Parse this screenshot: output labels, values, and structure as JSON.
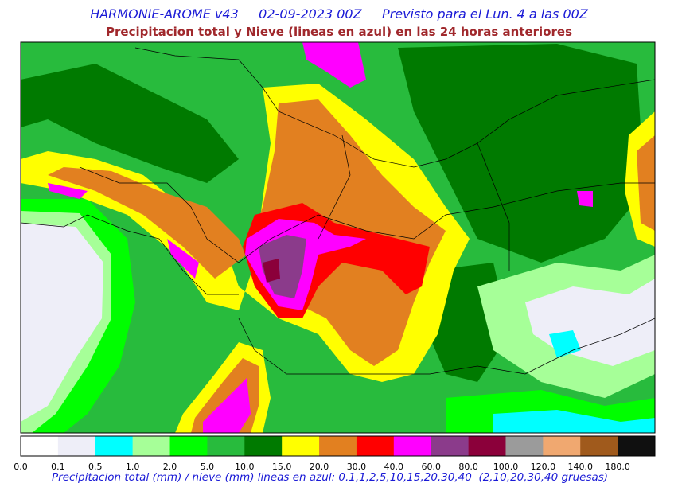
{
  "header": {
    "title": "HARMONIE-AROME v43     02-09-2023 00Z     Previsto para el Lun. 4 a las 00Z",
    "subtitle": "Precipitacion total y Nieve (lineas en azul) en las 24 horas anteriores"
  },
  "legend": {
    "labels": [
      "0.0",
      "0.1",
      "0.5",
      "1.0",
      "2.0",
      "5.0",
      "10.0",
      "15.0",
      "20.0",
      "30.0",
      "40.0",
      "60.0",
      "80.0",
      "100.0",
      "120.0",
      "140.0",
      "180.0"
    ],
    "colors": [
      "#ffffff",
      "#eeeef8",
      "#00ffff",
      "#a6ff98",
      "#00fe00",
      "#28bb3d",
      "#007a00",
      "#ffff00",
      "#e28020",
      "#ff0000",
      "#ff00ff",
      "#8b3b8b",
      "#8b003a",
      "#9b9b9b",
      "#f0a870",
      "#a05a1c",
      "#101010"
    ]
  },
  "footer": "Precipitacion total (mm) / nieve (mm) lineas en azul: 0.1,1,2,5,10,15,20,30,40  (2,10,20,30,40 gruesas)"
}
